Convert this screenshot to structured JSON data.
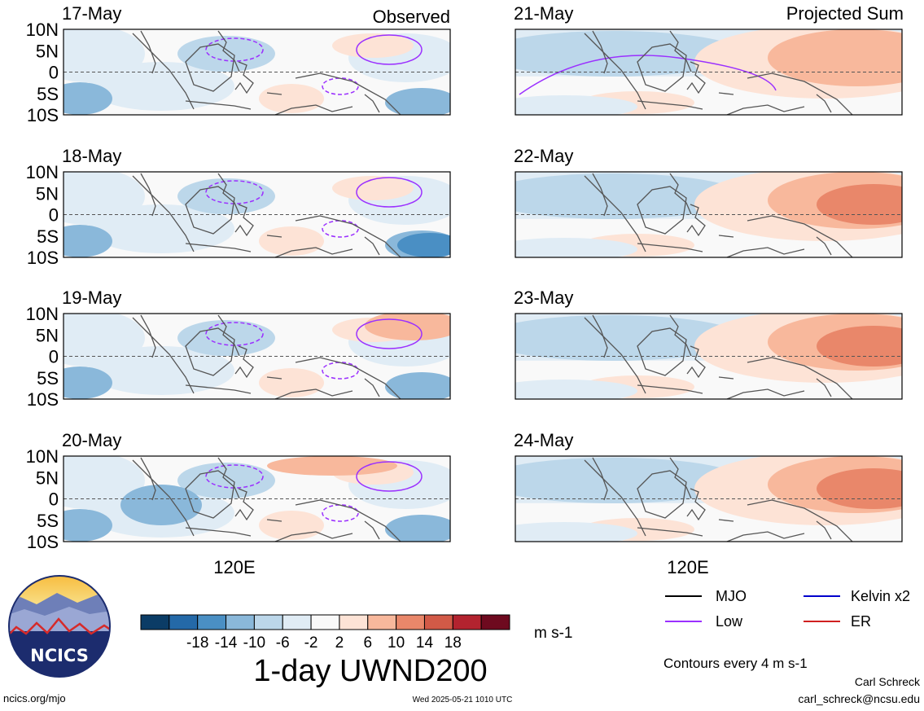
{
  "header": {
    "observed_label": "Observed",
    "projected_label": "Projected Sum"
  },
  "colors": {
    "colorbar": [
      "#0b3c66",
      "#2469a8",
      "#4a8fc4",
      "#8ab8da",
      "#bcd7ea",
      "#e0ecf5",
      "#f9f9f9",
      "#fde3d6",
      "#f8b89c",
      "#e9876a",
      "#d25a47",
      "#b3232f",
      "#6e0a1f"
    ],
    "mjo": "#000000",
    "low": "#9b30ff",
    "kelvin": "#0000cc",
    "er": "#d02020",
    "coast": "#555555",
    "equator": "#555555",
    "brand_blue": "#1c2c6e"
  },
  "chart_data": [
    {
      "type": "heatmap",
      "panel": "observed",
      "date": "17-May",
      "variable": "1-day UWND200",
      "lat_ticks": [
        "10N",
        "5N",
        "0",
        "5S",
        "10S"
      ],
      "lon_ticks": []
    },
    {
      "type": "heatmap",
      "panel": "observed",
      "date": "18-May",
      "variable": "1-day UWND200",
      "lat_ticks": [
        "10N",
        "5N",
        "0",
        "5S",
        "10S"
      ],
      "lon_ticks": []
    },
    {
      "type": "heatmap",
      "panel": "observed",
      "date": "19-May",
      "variable": "1-day UWND200",
      "lat_ticks": [
        "10N",
        "5N",
        "0",
        "5S",
        "10S"
      ],
      "lon_ticks": []
    },
    {
      "type": "heatmap",
      "panel": "observed",
      "date": "20-May",
      "variable": "1-day UWND200",
      "lat_ticks": [
        "10N",
        "5N",
        "0",
        "5S",
        "10S"
      ],
      "lon_ticks": [
        "120E"
      ]
    },
    {
      "type": "heatmap",
      "panel": "projected",
      "date": "21-May",
      "variable": "1-day UWND200",
      "lat_ticks": [],
      "lon_ticks": []
    },
    {
      "type": "heatmap",
      "panel": "projected",
      "date": "22-May",
      "variable": "1-day UWND200",
      "lat_ticks": [],
      "lon_ticks": []
    },
    {
      "type": "heatmap",
      "panel": "projected",
      "date": "23-May",
      "variable": "1-day UWND200",
      "lat_ticks": [],
      "lon_ticks": []
    },
    {
      "type": "heatmap",
      "panel": "projected",
      "date": "24-May",
      "variable": "1-day UWND200",
      "lat_ticks": [],
      "lon_ticks": [
        "120E"
      ]
    }
  ],
  "colorbar": {
    "labels": [
      "-18",
      "-14",
      "-10",
      "-6",
      "-2",
      "2",
      "6",
      "10",
      "14",
      "18"
    ],
    "units": "m s-1"
  },
  "title": "1-day UWND200",
  "legend": {
    "items": [
      {
        "name": "MJO",
        "color": "#000000"
      },
      {
        "name": "Kelvin x2",
        "color": "#0000cc"
      },
      {
        "name": "Low",
        "color": "#9b30ff"
      },
      {
        "name": "ER",
        "color": "#d02020"
      }
    ],
    "contours_note": "Contours every 4 m s-1"
  },
  "logo": {
    "text": "NCICS"
  },
  "footer": {
    "site": "ncics.org/mjo",
    "timestamp": "Wed 2025-05-21 1010 UTC",
    "author": "Carl Schreck",
    "email": "carl_schreck@ncsu.edu"
  }
}
